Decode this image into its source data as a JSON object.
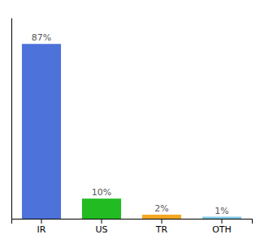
{
  "chart_data": {
    "type": "bar",
    "categories": [
      "IR",
      "US",
      "TR",
      "OTH"
    ],
    "values": [
      87,
      10,
      2,
      1
    ],
    "value_labels": [
      "87%",
      "10%",
      "2%",
      "1%"
    ],
    "colors": [
      "#4d72d9",
      "#22bb22",
      "#f5a623",
      "#7ec8e3"
    ],
    "ylim": [
      0,
      100
    ],
    "data_labels": true,
    "tick_labels": "x"
  }
}
